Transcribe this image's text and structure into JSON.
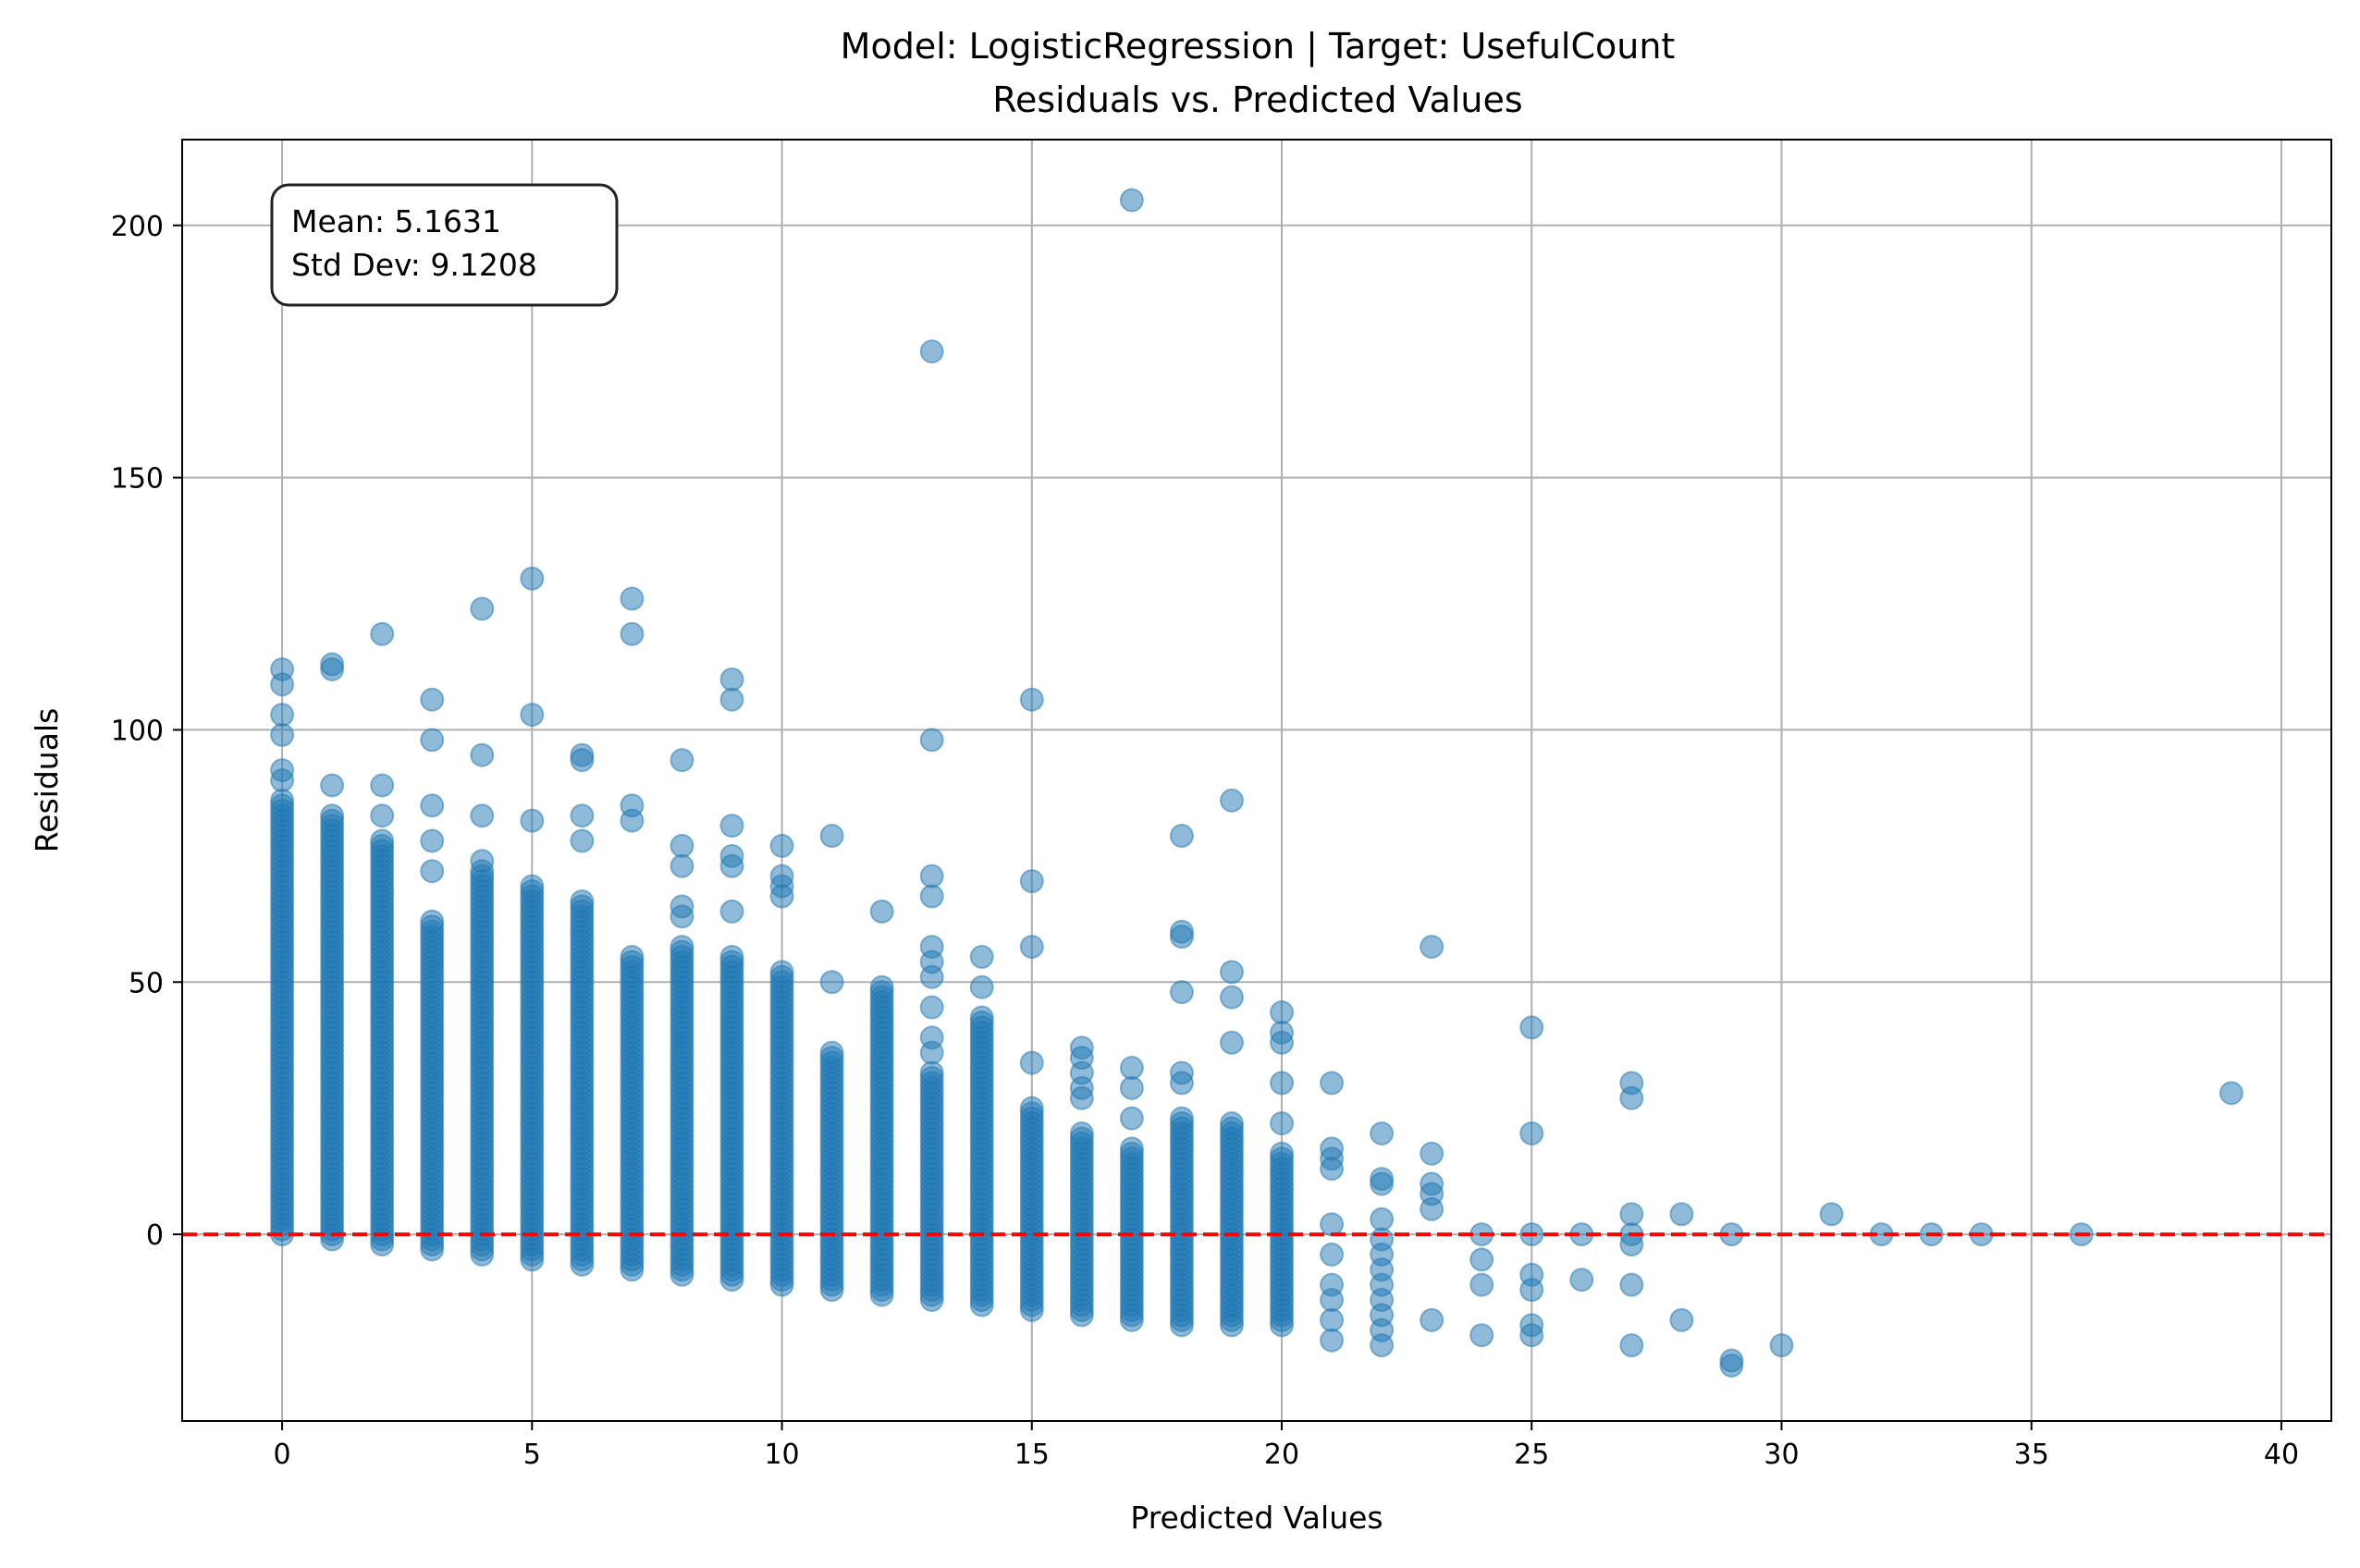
{
  "chart_data": {
    "type": "scatter",
    "title": "Model: LogisticRegression | Target: UsefulCount",
    "subtitle": "Residuals vs. Predicted Values",
    "xlabel": "Predicted Values",
    "ylabel": "Residuals",
    "xlim": [
      -2,
      41
    ],
    "ylim": [
      -37,
      217
    ],
    "xticks": [
      0,
      5,
      10,
      15,
      20,
      25,
      30,
      35,
      40
    ],
    "yticks": [
      0,
      50,
      100,
      150,
      200
    ],
    "grid": true,
    "reference_line": {
      "y": 0,
      "color": "#ff0000",
      "style": "dashed"
    },
    "stats_box": {
      "mean_label": "Mean: 5.1631",
      "std_label": "Std Dev: 9.1208",
      "placement": "top-left"
    },
    "marker_color": "#1f77b4",
    "marker_alpha": 0.5,
    "columns": [
      {
        "x": 0,
        "min": 0,
        "max": 86
      },
      {
        "x": 1,
        "min": -1,
        "max": 83
      },
      {
        "x": 2,
        "min": -2,
        "max": 78
      },
      {
        "x": 3,
        "min": -3,
        "max": 62
      },
      {
        "x": 4,
        "min": -4,
        "max": 72
      },
      {
        "x": 5,
        "min": -5,
        "max": 69
      },
      {
        "x": 6,
        "min": -6,
        "max": 66
      },
      {
        "x": 7,
        "min": -7,
        "max": 55
      },
      {
        "x": 8,
        "min": -8,
        "max": 57
      },
      {
        "x": 9,
        "min": -9,
        "max": 55
      },
      {
        "x": 10,
        "min": -10,
        "max": 52
      },
      {
        "x": 11,
        "min": -11,
        "max": 36
      },
      {
        "x": 12,
        "min": -12,
        "max": 49
      },
      {
        "x": 13,
        "min": -13,
        "max": 32
      },
      {
        "x": 14,
        "min": -14,
        "max": 43
      },
      {
        "x": 15,
        "min": -15,
        "max": 25
      },
      {
        "x": 16,
        "min": -16,
        "max": 20
      },
      {
        "x": 17,
        "min": -17,
        "max": 17
      },
      {
        "x": 18,
        "min": -18,
        "max": 23
      },
      {
        "x": 19,
        "min": -18,
        "max": 22
      },
      {
        "x": 20,
        "min": -18,
        "max": 16
      }
    ],
    "points": [
      {
        "x": 0,
        "y": 112
      },
      {
        "x": 0,
        "y": 109
      },
      {
        "x": 0,
        "y": 103
      },
      {
        "x": 0,
        "y": 99
      },
      {
        "x": 0,
        "y": 92
      },
      {
        "x": 0,
        "y": 90
      },
      {
        "x": 1,
        "y": 113
      },
      {
        "x": 1,
        "y": 112
      },
      {
        "x": 1,
        "y": 89
      },
      {
        "x": 2,
        "y": 119
      },
      {
        "x": 2,
        "y": 89
      },
      {
        "x": 2,
        "y": 83
      },
      {
        "x": 3,
        "y": 106
      },
      {
        "x": 3,
        "y": 98
      },
      {
        "x": 3,
        "y": 85
      },
      {
        "x": 3,
        "y": 78
      },
      {
        "x": 3,
        "y": 72
      },
      {
        "x": 4,
        "y": 124
      },
      {
        "x": 4,
        "y": 95
      },
      {
        "x": 4,
        "y": 83
      },
      {
        "x": 4,
        "y": 74
      },
      {
        "x": 5,
        "y": 130
      },
      {
        "x": 5,
        "y": 103
      },
      {
        "x": 5,
        "y": 82
      },
      {
        "x": 6,
        "y": 95
      },
      {
        "x": 6,
        "y": 94
      },
      {
        "x": 6,
        "y": 83
      },
      {
        "x": 6,
        "y": 78
      },
      {
        "x": 7,
        "y": 126
      },
      {
        "x": 7,
        "y": 119
      },
      {
        "x": 7,
        "y": 85
      },
      {
        "x": 7,
        "y": 82
      },
      {
        "x": 8,
        "y": 94
      },
      {
        "x": 8,
        "y": 77
      },
      {
        "x": 8,
        "y": 73
      },
      {
        "x": 8,
        "y": 65
      },
      {
        "x": 8,
        "y": 63
      },
      {
        "x": 9,
        "y": 110
      },
      {
        "x": 9,
        "y": 106
      },
      {
        "x": 9,
        "y": 81
      },
      {
        "x": 9,
        "y": 75
      },
      {
        "x": 9,
        "y": 73
      },
      {
        "x": 9,
        "y": 64
      },
      {
        "x": 10,
        "y": 77
      },
      {
        "x": 10,
        "y": 71
      },
      {
        "x": 10,
        "y": 69
      },
      {
        "x": 10,
        "y": 67
      },
      {
        "x": 11,
        "y": 79
      },
      {
        "x": 11,
        "y": 50
      },
      {
        "x": 12,
        "y": 64
      },
      {
        "x": 13,
        "y": 175
      },
      {
        "x": 13,
        "y": 98
      },
      {
        "x": 13,
        "y": 71
      },
      {
        "x": 13,
        "y": 67
      },
      {
        "x": 13,
        "y": 57
      },
      {
        "x": 13,
        "y": 54
      },
      {
        "x": 13,
        "y": 51
      },
      {
        "x": 13,
        "y": 45
      },
      {
        "x": 13,
        "y": 39
      },
      {
        "x": 13,
        "y": 36
      },
      {
        "x": 14,
        "y": 55
      },
      {
        "x": 14,
        "y": 49
      },
      {
        "x": 15,
        "y": 106
      },
      {
        "x": 15,
        "y": 70
      },
      {
        "x": 15,
        "y": 57
      },
      {
        "x": 15,
        "y": 34
      },
      {
        "x": 16,
        "y": 37
      },
      {
        "x": 16,
        "y": 35
      },
      {
        "x": 16,
        "y": 32
      },
      {
        "x": 16,
        "y": 29
      },
      {
        "x": 16,
        "y": 27
      },
      {
        "x": 17,
        "y": 205
      },
      {
        "x": 17,
        "y": 33
      },
      {
        "x": 17,
        "y": 29
      },
      {
        "x": 17,
        "y": 23
      },
      {
        "x": 18,
        "y": 79
      },
      {
        "x": 18,
        "y": 60
      },
      {
        "x": 18,
        "y": 59
      },
      {
        "x": 18,
        "y": 48
      },
      {
        "x": 18,
        "y": 32
      },
      {
        "x": 18,
        "y": 30
      },
      {
        "x": 19,
        "y": 86
      },
      {
        "x": 19,
        "y": 52
      },
      {
        "x": 19,
        "y": 47
      },
      {
        "x": 19,
        "y": 38
      },
      {
        "x": 20,
        "y": 44
      },
      {
        "x": 20,
        "y": 40
      },
      {
        "x": 20,
        "y": 38
      },
      {
        "x": 20,
        "y": 30
      },
      {
        "x": 20,
        "y": 22
      },
      {
        "x": 21,
        "y": 30
      },
      {
        "x": 21,
        "y": 17
      },
      {
        "x": 21,
        "y": 15
      },
      {
        "x": 21,
        "y": 13
      },
      {
        "x": 21,
        "y": 2
      },
      {
        "x": 21,
        "y": -4
      },
      {
        "x": 21,
        "y": -10
      },
      {
        "x": 21,
        "y": -13
      },
      {
        "x": 21,
        "y": -17
      },
      {
        "x": 21,
        "y": -21
      },
      {
        "x": 22,
        "y": 20
      },
      {
        "x": 22,
        "y": 11
      },
      {
        "x": 22,
        "y": 10
      },
      {
        "x": 22,
        "y": 3
      },
      {
        "x": 22,
        "y": -1
      },
      {
        "x": 22,
        "y": -4
      },
      {
        "x": 22,
        "y": -7
      },
      {
        "x": 22,
        "y": -10
      },
      {
        "x": 22,
        "y": -13
      },
      {
        "x": 22,
        "y": -16
      },
      {
        "x": 22,
        "y": -19
      },
      {
        "x": 22,
        "y": -22
      },
      {
        "x": 23,
        "y": 57
      },
      {
        "x": 23,
        "y": 16
      },
      {
        "x": 23,
        "y": 10
      },
      {
        "x": 23,
        "y": 8
      },
      {
        "x": 23,
        "y": 5
      },
      {
        "x": 23,
        "y": -17
      },
      {
        "x": 24,
        "y": 0
      },
      {
        "x": 24,
        "y": -5
      },
      {
        "x": 24,
        "y": -10
      },
      {
        "x": 24,
        "y": -20
      },
      {
        "x": 25,
        "y": 41
      },
      {
        "x": 25,
        "y": 20
      },
      {
        "x": 25,
        "y": 0
      },
      {
        "x": 25,
        "y": -8
      },
      {
        "x": 25,
        "y": -11
      },
      {
        "x": 25,
        "y": -18
      },
      {
        "x": 25,
        "y": -20
      },
      {
        "x": 26,
        "y": 0
      },
      {
        "x": 26,
        "y": -9
      },
      {
        "x": 27,
        "y": 30
      },
      {
        "x": 27,
        "y": 27
      },
      {
        "x": 27,
        "y": 4
      },
      {
        "x": 27,
        "y": 0
      },
      {
        "x": 27,
        "y": -2
      },
      {
        "x": 27,
        "y": -10
      },
      {
        "x": 27,
        "y": -22
      },
      {
        "x": 28,
        "y": 4
      },
      {
        "x": 28,
        "y": -17
      },
      {
        "x": 29,
        "y": 0
      },
      {
        "x": 29,
        "y": -25
      },
      {
        "x": 29,
        "y": -26
      },
      {
        "x": 30,
        "y": -22
      },
      {
        "x": 31,
        "y": 4
      },
      {
        "x": 32,
        "y": 0
      },
      {
        "x": 33,
        "y": 0
      },
      {
        "x": 34,
        "y": 0
      },
      {
        "x": 36,
        "y": 0
      },
      {
        "x": 39,
        "y": 28
      }
    ]
  }
}
